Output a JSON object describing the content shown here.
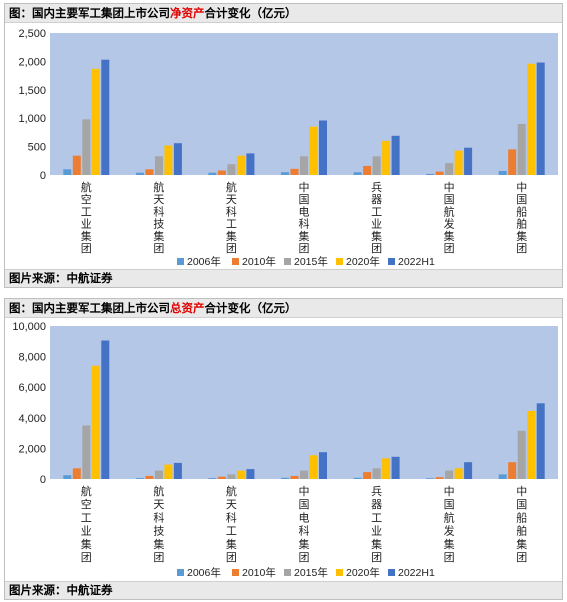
{
  "colors": {
    "plot_bg": "#b4c7e7",
    "series": [
      "#5b9bd5",
      "#ed7d31",
      "#a5a5a5",
      "#ffc000",
      "#4472c4"
    ],
    "highlight_text": "#e00000"
  },
  "panel1": {
    "title_prefix": "图：国内主要军工集团上市公司",
    "title_highlight": "净资产",
    "title_suffix": "合计变化（亿元）",
    "source": "图片来源：中航证券"
  },
  "panel2": {
    "title_prefix": "图：国内主要军工集团上市公司",
    "title_highlight": "总资产",
    "title_suffix": "合计变化（亿元）",
    "source": "图片来源：中航证券"
  },
  "chart_data": [
    {
      "type": "bar",
      "categories": [
        "航空工业集团",
        "航天科技集团",
        "航天科工集团",
        "中国电科集团",
        "兵器工业集团",
        "中国航发集团",
        "中国船舶集团"
      ],
      "series": [
        {
          "name": "2006年",
          "values": [
            100,
            40,
            40,
            50,
            50,
            20,
            70
          ]
        },
        {
          "name": "2010年",
          "values": [
            340,
            100,
            80,
            110,
            160,
            60,
            450
          ]
        },
        {
          "name": "2015年",
          "values": [
            980,
            330,
            190,
            330,
            330,
            210,
            900
          ]
        },
        {
          "name": "2020年",
          "values": [
            1870,
            520,
            340,
            850,
            600,
            430,
            1960
          ]
        },
        {
          "name": "2022H1",
          "values": [
            2030,
            560,
            380,
            960,
            690,
            480,
            1980
          ]
        }
      ],
      "ylim": [
        0,
        2500
      ],
      "yticks": [
        "0",
        "500",
        "1,000",
        "1,500",
        "2,000",
        "2,500"
      ],
      "grid": false,
      "legend": "bottom"
    },
    {
      "type": "bar",
      "categories": [
        "航空工业集团",
        "航天科技集团",
        "航天科工集团",
        "中国电科集团",
        "兵器工业集团",
        "中国航发集团",
        "中国船舶集团"
      ],
      "series": [
        {
          "name": "2006年",
          "values": [
            250,
            60,
            60,
            80,
            80,
            50,
            300
          ]
        },
        {
          "name": "2010年",
          "values": [
            700,
            200,
            150,
            200,
            450,
            120,
            1100
          ]
        },
        {
          "name": "2015年",
          "values": [
            3500,
            550,
            300,
            550,
            700,
            550,
            3150
          ]
        },
        {
          "name": "2020年",
          "values": [
            7400,
            950,
            550,
            1550,
            1350,
            700,
            4450
          ]
        },
        {
          "name": "2022H1",
          "values": [
            9050,
            1050,
            650,
            1750,
            1450,
            1100,
            4950
          ]
        }
      ],
      "ylim": [
        0,
        10000
      ],
      "yticks": [
        "0",
        "2,000",
        "4,000",
        "6,000",
        "8,000",
        "10,000"
      ],
      "grid": false,
      "legend": "bottom"
    }
  ]
}
